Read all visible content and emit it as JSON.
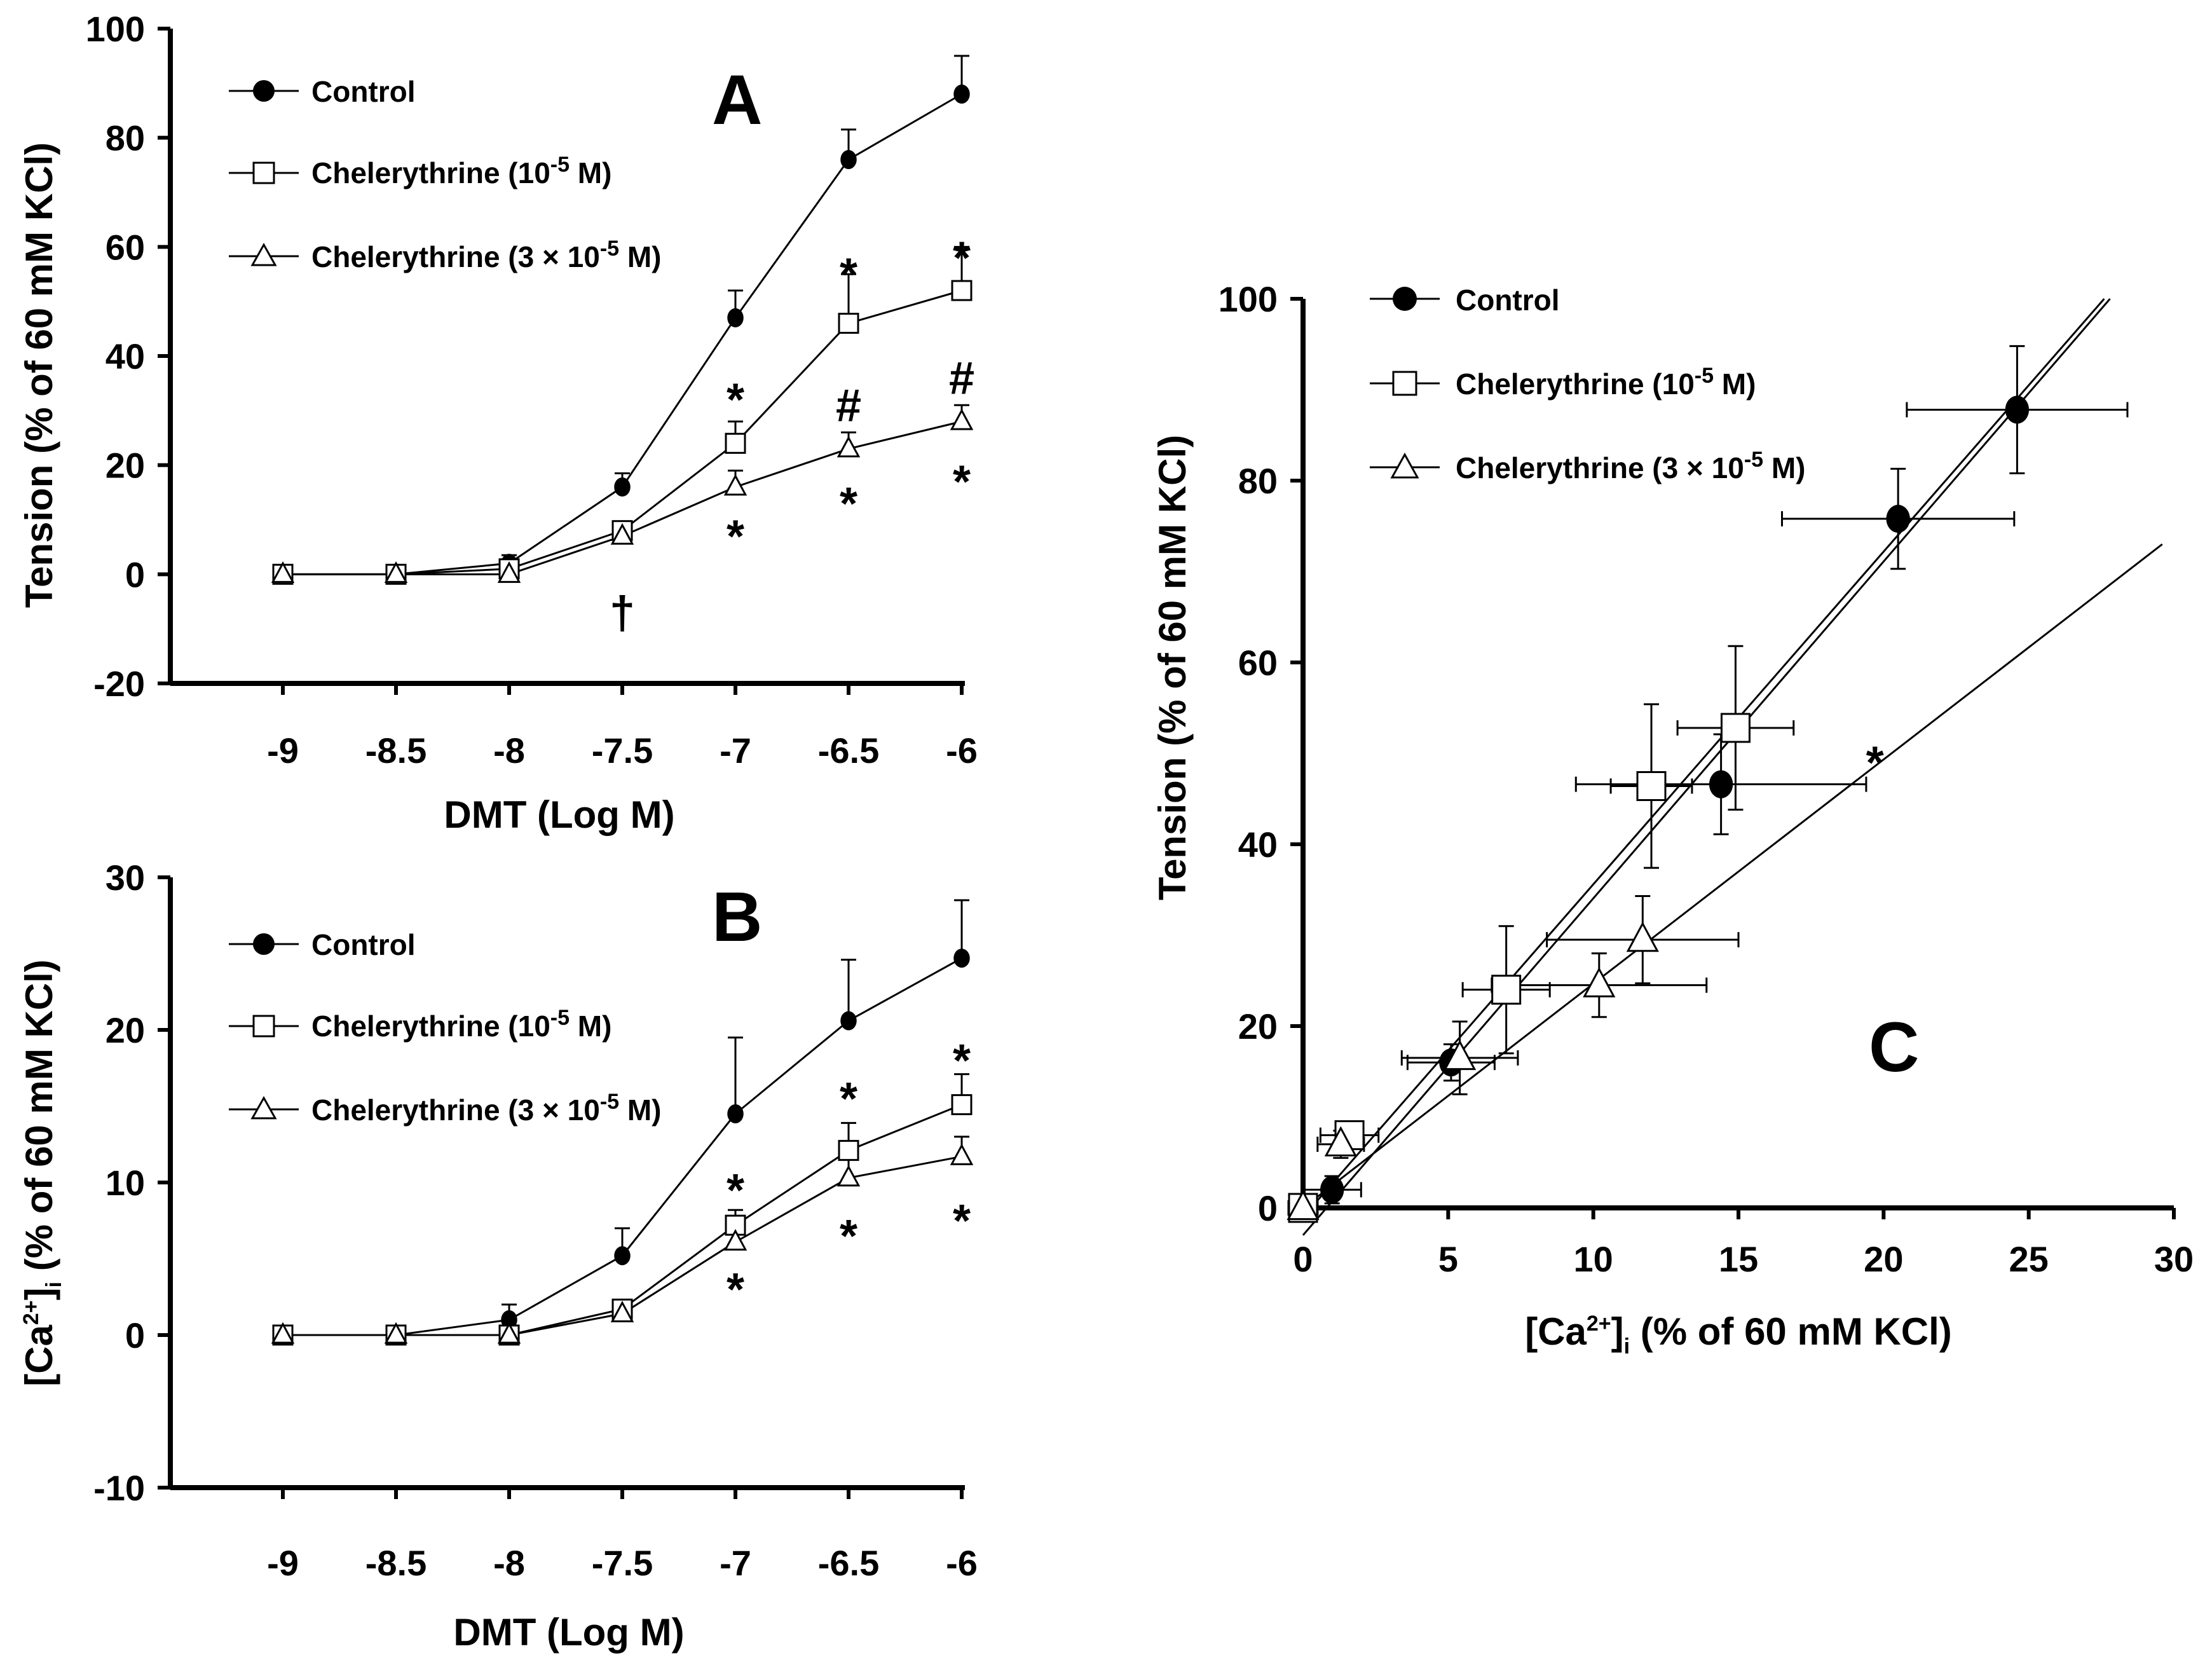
{
  "chart_data": [
    {
      "panel": "A",
      "type": "line",
      "xlabel": "DMT (Log M)",
      "ylabel": "Tension (% of 60 mM KCl)",
      "ylim": [
        -20,
        100
      ],
      "yticks": [
        -20,
        0,
        20,
        40,
        60,
        80,
        100
      ],
      "x": [
        -9,
        -8.5,
        -8,
        -7.5,
        -7,
        -6.5,
        -6
      ],
      "xtick_labels": [
        "-9",
        "-8.5",
        "-8",
        "-7.5",
        "-7",
        "-6.5",
        "-6"
      ],
      "series": [
        {
          "name": "Control",
          "marker": "filled-circle",
          "values": [
            0,
            0,
            2,
            16,
            47,
            76,
            88
          ],
          "err": [
            0,
            0,
            1.5,
            2.5,
            5,
            5.5,
            7
          ]
        },
        {
          "name": "Chelerythrine (10-5 M)",
          "marker": "open-square",
          "values": [
            0,
            0,
            1,
            8,
            24,
            46,
            52
          ],
          "err": [
            0,
            0,
            1,
            1.5,
            4,
            9,
            8
          ]
        },
        {
          "name": "Chelerythrine (3 × 10-5 M)",
          "marker": "open-triangle",
          "values": [
            0,
            0,
            0,
            7,
            16,
            23,
            28
          ],
          "err": [
            0,
            0,
            1,
            1.5,
            3,
            3,
            3
          ]
        }
      ],
      "annotations": [
        {
          "text": "*",
          "x": -7,
          "y": 32
        },
        {
          "text": "*",
          "x": -6.5,
          "y": 55
        },
        {
          "text": "*",
          "x": -6,
          "y": 58
        },
        {
          "text": "#",
          "x": -6.5,
          "y": 31
        },
        {
          "text": "#",
          "x": -6,
          "y": 36
        },
        {
          "text": "*",
          "x": -7,
          "y": 7
        },
        {
          "text": "*",
          "x": -6.5,
          "y": 13
        },
        {
          "text": "*",
          "x": -6,
          "y": 17
        },
        {
          "text": "†",
          "x": -7.5,
          "y": -7
        }
      ]
    },
    {
      "panel": "B",
      "type": "line",
      "xlabel": "DMT (Log M)",
      "ylabel": "[Ca2+]i (% of 60 mM KCl)",
      "ylim": [
        -10,
        30
      ],
      "yticks": [
        -10,
        0,
        10,
        20,
        30
      ],
      "x": [
        -9,
        -8.5,
        -8,
        -7.5,
        -7,
        -6.5,
        -6
      ],
      "xtick_labels": [
        "-9",
        "-8.5",
        "-8",
        "-7.5",
        "-7",
        "-6.5",
        "-6"
      ],
      "series": [
        {
          "name": "Control",
          "marker": "filled-circle",
          "values": [
            0,
            0,
            1,
            5.2,
            14.5,
            20.6,
            24.7
          ],
          "err": [
            0,
            0,
            1,
            1.8,
            5,
            4,
            3.8
          ]
        },
        {
          "name": "Chelerythrine (10-5 M)",
          "marker": "open-square",
          "values": [
            0,
            0,
            0,
            1.7,
            7.2,
            12.1,
            15.1
          ],
          "err": [
            0,
            0,
            0.5,
            0.5,
            1,
            1.8,
            2
          ]
        },
        {
          "name": "Chelerythrine (3 × 10-5 M)",
          "marker": "open-triangle",
          "values": [
            0,
            0,
            0,
            1.4,
            6.1,
            10.3,
            11.7
          ],
          "err": [
            0,
            0,
            0.5,
            0.5,
            1,
            1.2,
            1.3
          ]
        }
      ],
      "annotations": [
        {
          "text": "*",
          "x": -7,
          "y": 9.5
        },
        {
          "text": "*",
          "x": -6.5,
          "y": 15.5
        },
        {
          "text": "*",
          "x": -6,
          "y": 18
        },
        {
          "text": "*",
          "x": -7,
          "y": 3
        },
        {
          "text": "*",
          "x": -6.5,
          "y": 6.5
        },
        {
          "text": "*",
          "x": -6,
          "y": 7.5
        }
      ]
    },
    {
      "panel": "C",
      "type": "scatter",
      "xlabel": "[Ca2+]i (% of 60 mM KCl)",
      "ylabel": "Tension (% of 60 mM KCl)",
      "xlim": [
        0,
        30
      ],
      "ylim": [
        0,
        100
      ],
      "xticks": [
        0,
        5,
        10,
        15,
        20,
        25,
        30
      ],
      "yticks": [
        0,
        20,
        40,
        60,
        80,
        100
      ],
      "series": [
        {
          "name": "Control",
          "marker": "filled-circle",
          "x": [
            0,
            1,
            5.1,
            14.4,
            20.5,
            24.6
          ],
          "y": [
            0,
            2,
            16,
            46.6,
            75.8,
            87.8
          ],
          "xerr": [
            0.5,
            1,
            1.5,
            5,
            4,
            3.8
          ],
          "yerr": [
            1,
            1.5,
            2,
            5.5,
            5.5,
            7
          ]
        },
        {
          "name": "Chelerythrine (10-5 M)",
          "marker": "open-square",
          "x": [
            0,
            1.6,
            7,
            12,
            14.9
          ],
          "y": [
            0,
            8,
            24,
            46.4,
            52.8
          ],
          "xerr": [
            0.5,
            1,
            1.5,
            1.4,
            2
          ],
          "yerr": [
            1,
            1.5,
            7,
            9,
            9
          ]
        },
        {
          "name": "Chelerythrine (3 × 10-5 M)",
          "marker": "open-triangle",
          "x": [
            0,
            1.3,
            5.4,
            10.2,
            11.7
          ],
          "y": [
            0,
            7,
            16.5,
            24.5,
            29.5
          ],
          "xerr": [
            0.5,
            0.8,
            2,
            3.7,
            3.3
          ],
          "yerr": [
            1,
            1.5,
            4,
            3.5,
            4.8
          ]
        }
      ],
      "fit_lines": [
        {
          "name": "Control",
          "x": [
            0,
            27.8
          ],
          "y": [
            -3,
            100
          ]
        },
        {
          "name": "Chelerythrine (10-5 M)",
          "x": [
            0,
            27.6
          ],
          "y": [
            -1,
            100
          ]
        },
        {
          "name": "Chelerythrine (3 × 10-5 M)",
          "x": [
            0,
            29.6
          ],
          "y": [
            0,
            73
          ]
        }
      ],
      "annotations": [
        {
          "text": "*",
          "x": 19.7,
          "y": 49
        }
      ]
    }
  ],
  "panels": {
    "A": {
      "letter": "A",
      "ylabel": "Tension (% of 60 mM KCl)",
      "xlabel": "DMT (Log M)",
      "legend": {
        "control": "Control",
        "chel1": "Chelerythrine (10",
        "chel1_exp": "-5",
        "chel1_tail": " M)",
        "chel2": "Chelerythrine (3 × 10",
        "chel2_exp": "-5",
        "chel2_tail": " M)"
      }
    },
    "B": {
      "letter": "B",
      "ylabel_pre": "[Ca",
      "ylabel_sup": "2+",
      "ylabel_mid": "]",
      "ylabel_sub": "i",
      "ylabel_post": " (% of 60 mM KCl)",
      "xlabel": "DMT (Log M)",
      "legend": {
        "control": "Control",
        "chel1": "Chelerythrine (10",
        "chel1_exp": "-5",
        "chel1_tail": " M)",
        "chel2": "Chelerythrine (3 × 10",
        "chel2_exp": "-5",
        "chel2_tail": " M)"
      }
    },
    "C": {
      "letter": "C",
      "ylabel": "Tension (% of 60 mM KCl)",
      "xlabel_pre": "[Ca",
      "xlabel_sup": "2+",
      "xlabel_mid": "]",
      "xlabel_sub": "i",
      "xlabel_post": " (% of 60 mM KCl)",
      "legend": {
        "control": "Control",
        "chel1": "Chelerythrine (10",
        "chel1_exp": "-5",
        "chel1_tail": " M)",
        "chel2": "Chelerythrine (3 × 10",
        "chel2_exp": "-5",
        "chel2_tail": " M)"
      }
    }
  }
}
